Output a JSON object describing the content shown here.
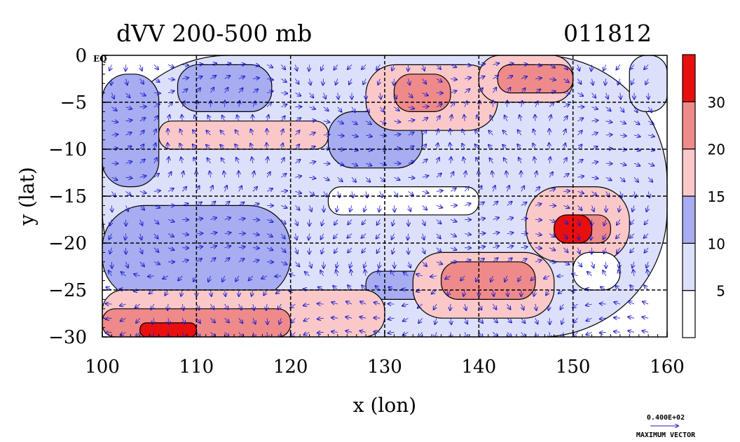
{
  "chart_data": {
    "type": "heatmap",
    "title": "dVV 200-500 mb",
    "timestamp": "011812",
    "xlabel": "x (lon)",
    "ylabel": "y (lat)",
    "xlim": [
      100,
      160
    ],
    "ylim": [
      -30,
      0
    ],
    "x_ticks": [
      100,
      110,
      120,
      130,
      140,
      150,
      160
    ],
    "y_ticks": [
      0,
      -5,
      -10,
      -15,
      -20,
      -25,
      -30
    ],
    "y_tick_labels": [
      "0",
      "−5",
      "−10",
      "−15",
      "−20",
      "−25",
      "−30"
    ],
    "x_tick_labels": [
      "100",
      "110",
      "120",
      "130",
      "140",
      "150",
      "160"
    ],
    "grid": true,
    "grid_lines_x": [
      110,
      120,
      130,
      140,
      150
    ],
    "grid_lines_y": [
      -5,
      -10,
      -15,
      -20,
      -25
    ],
    "corner_label": "EQ",
    "colorbar": {
      "levels": [
        0,
        5,
        10,
        15,
        20,
        30,
        40
      ],
      "tick_labels": [
        "5",
        "10",
        "15",
        "20",
        "30"
      ],
      "tick_values": [
        5,
        10,
        15,
        20,
        30
      ],
      "colors": [
        "#ffffff",
        "#dde0fa",
        "#a7adf0",
        "#fac8c8",
        "#ef8a8a",
        "#e80f0f"
      ]
    },
    "vector_key": {
      "value_label": "0.400E+02",
      "caption": "MAXIMUM VECTOR",
      "color": "#1c1ccf"
    },
    "regions": [
      {
        "lon": [
          100,
          160
        ],
        "lat": [
          -30,
          0
        ],
        "value": 7
      },
      {
        "lon": [
          100,
          120
        ],
        "lat": [
          -26,
          -16
        ],
        "value": 11
      },
      {
        "lon": [
          100,
          106
        ],
        "lat": [
          -14,
          -2
        ],
        "value": 12
      },
      {
        "lon": [
          108,
          118
        ],
        "lat": [
          -6,
          -1
        ],
        "value": 11
      },
      {
        "lon": [
          124,
          134
        ],
        "lat": [
          -12,
          -6
        ],
        "value": 11
      },
      {
        "lon": [
          128,
          140
        ],
        "lat": [
          -26,
          -23
        ],
        "value": 12
      },
      {
        "lon": [
          100,
          130
        ],
        "lat": [
          -30,
          -25
        ],
        "value": 18
      },
      {
        "lon": [
          100,
          120
        ],
        "lat": [
          -30,
          -27
        ],
        "value": 24
      },
      {
        "lon": [
          104,
          110
        ],
        "lat": [
          -30,
          -28.5
        ],
        "value": 33
      },
      {
        "lon": [
          128,
          142
        ],
        "lat": [
          -8,
          -1
        ],
        "value": 18
      },
      {
        "lon": [
          131,
          137
        ],
        "lat": [
          -6,
          -2
        ],
        "value": 24
      },
      {
        "lon": [
          140,
          150
        ],
        "lat": [
          -5,
          0
        ],
        "value": 16
      },
      {
        "lon": [
          142,
          150
        ],
        "lat": [
          -4,
          -1
        ],
        "value": 22
      },
      {
        "lon": [
          106,
          124
        ],
        "lat": [
          -10,
          -7
        ],
        "value": 16
      },
      {
        "lon": [
          145,
          156
        ],
        "lat": [
          -22,
          -14
        ],
        "value": 19
      },
      {
        "lon": [
          148,
          154
        ],
        "lat": [
          -20,
          -17
        ],
        "value": 24
      },
      {
        "lon": [
          148,
          152
        ],
        "lat": [
          -20,
          -17
        ],
        "value": 34
      },
      {
        "lon": [
          133,
          148
        ],
        "lat": [
          -28,
          -21
        ],
        "value": 18
      },
      {
        "lon": [
          136,
          146
        ],
        "lat": [
          -26,
          -22
        ],
        "value": 23
      },
      {
        "lon": [
          150,
          155
        ],
        "lat": [
          -25,
          -21
        ],
        "value": 2
      },
      {
        "lon": [
          124,
          140
        ],
        "lat": [
          -17,
          -14
        ],
        "value": 3
      },
      {
        "lon": [
          156,
          160
        ],
        "lat": [
          -6,
          0
        ],
        "value": 8
      }
    ]
  }
}
